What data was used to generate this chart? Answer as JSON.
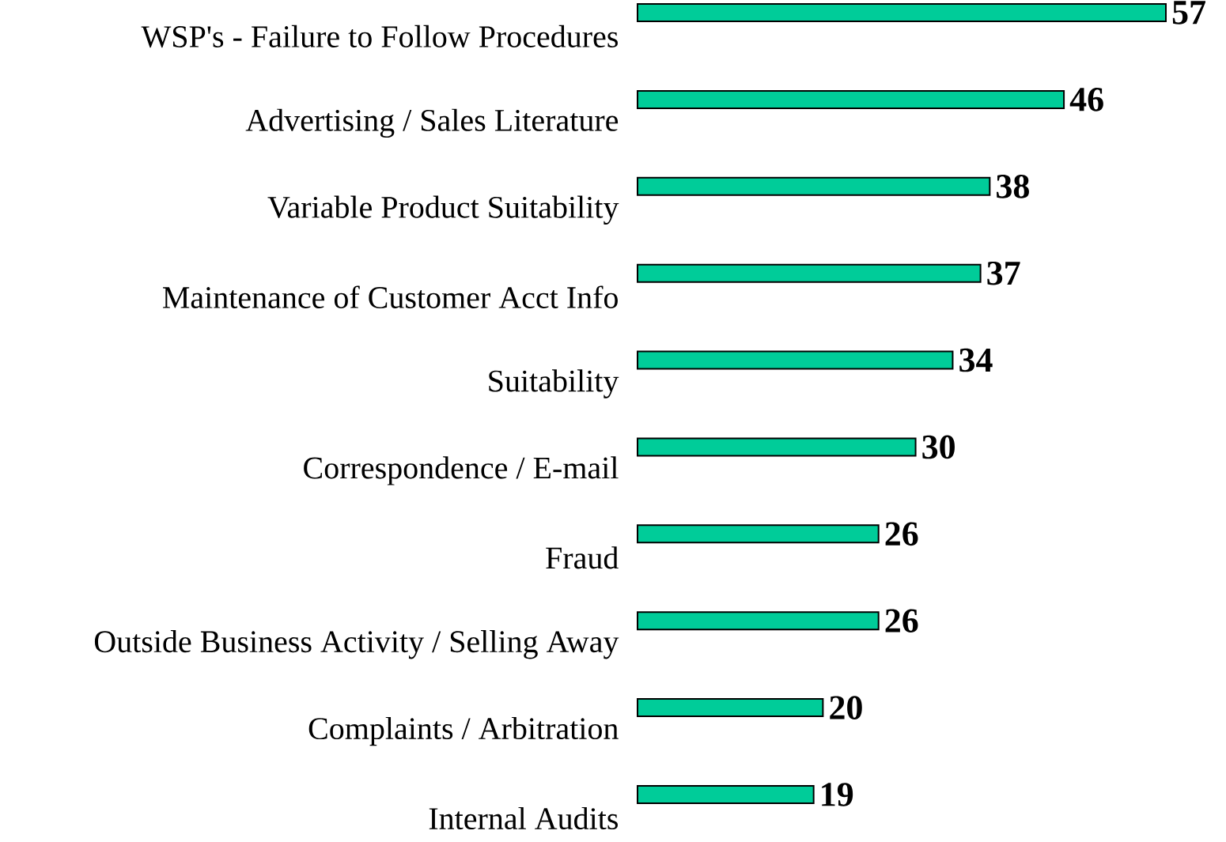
{
  "chart_data": {
    "type": "bar",
    "orientation": "horizontal",
    "data_labels": true,
    "color": "#00cc99",
    "categories": [
      "WSP's - Failure to Follow Procedures",
      "Advertising / Sales Literature",
      "Variable Product Suitability",
      "Maintenance of Customer Acct Info",
      "Suitability",
      "Correspondence / E-mail",
      "Fraud",
      "Outside Business Activity / Selling Away",
      "Complaints / Arbitration",
      "Internal Audits"
    ],
    "values": [
      57,
      46,
      38,
      37,
      34,
      30,
      26,
      26,
      20,
      19
    ]
  }
}
